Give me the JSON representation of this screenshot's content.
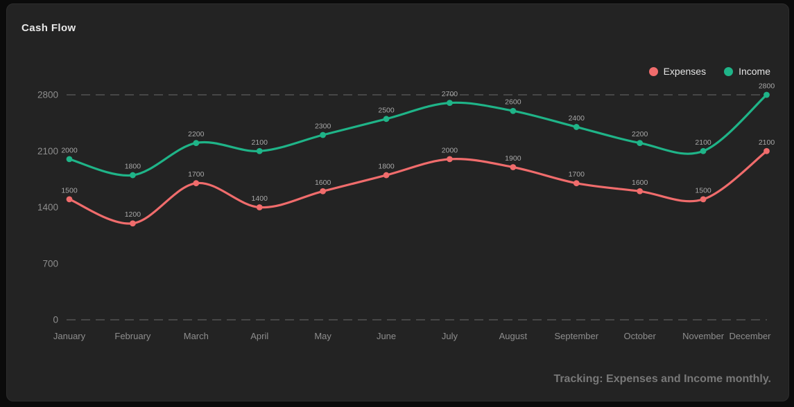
{
  "card": {
    "title": "Cash Flow"
  },
  "footer": {
    "note": "Tracking: Expenses and Income monthly."
  },
  "colors": {
    "page_background": "#0b0b0b",
    "card_background": "#232323",
    "grid": "#474747",
    "axis_text": "#8e8e8e",
    "point_label_text": "#a8a8a8",
    "title_text": "#e9e9e9",
    "footer_text": "#787878",
    "expenses": "#f06c6c",
    "income": "#1fb488"
  },
  "chart_data": {
    "type": "line",
    "title": "Cash Flow",
    "categories": [
      "January",
      "February",
      "March",
      "April",
      "May",
      "June",
      "July",
      "August",
      "September",
      "October",
      "November",
      "December"
    ],
    "series": [
      {
        "name": "Expenses",
        "color": "#f06c6c",
        "values": [
          1500,
          1200,
          1700,
          1400,
          1600,
          1800,
          2000,
          1900,
          1700,
          1600,
          1500,
          2100
        ]
      },
      {
        "name": "Income",
        "color": "#1fb488",
        "values": [
          2000,
          1800,
          2200,
          2100,
          2300,
          2500,
          2700,
          2600,
          2400,
          2200,
          2100,
          2800
        ]
      }
    ],
    "xlabel": "",
    "ylabel": "",
    "ylim": [
      0,
      2800
    ],
    "yticks": [
      0,
      700,
      1400,
      2100,
      2800
    ],
    "grid": "horizontal dashed lines at 0 and 2800 only",
    "legend_position": "top-right",
    "point_labels": true,
    "curve": "smooth"
  }
}
